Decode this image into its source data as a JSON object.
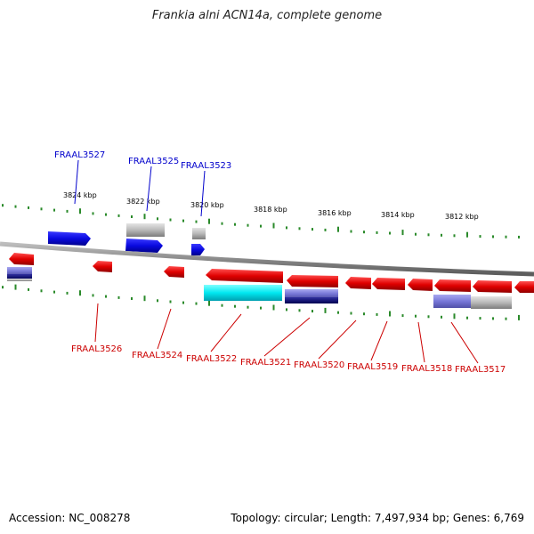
{
  "title": "Frankia alni ACN14a, complete genome",
  "footer": {
    "accession": "Accession: NC_008278",
    "summary": "Topology: circular; Length: 7,497,934 bp; Genes: 6,769"
  },
  "colors": {
    "background": "#ffffff",
    "backbone": "#8a8a8a",
    "tick": "#2a8a2a",
    "gene_forward": "#1010e0",
    "gene_reverse": "#e00000",
    "label_forward": "#0000cc",
    "label_reverse": "#cc0000",
    "hit_gray": "#b8b8b8",
    "hit_cyan": "#00e0e8",
    "hit_slate": "#8080d8"
  },
  "kbp_labels": [
    "3824 kbp",
    "3822 kbp",
    "3820 kbp",
    "3818 kbp",
    "3816 kbp",
    "3814 kbp",
    "3812 kbp"
  ],
  "forward_gene_labels": [
    "FRAAL3527",
    "FRAAL3525",
    "FRAAL3523"
  ],
  "reverse_gene_labels": [
    "FRAAL3526",
    "FRAAL3524",
    "FRAAL3522",
    "FRAAL3521",
    "FRAAL3520",
    "FRAAL3519",
    "FRAAL3518",
    "FRAAL3517"
  ]
}
